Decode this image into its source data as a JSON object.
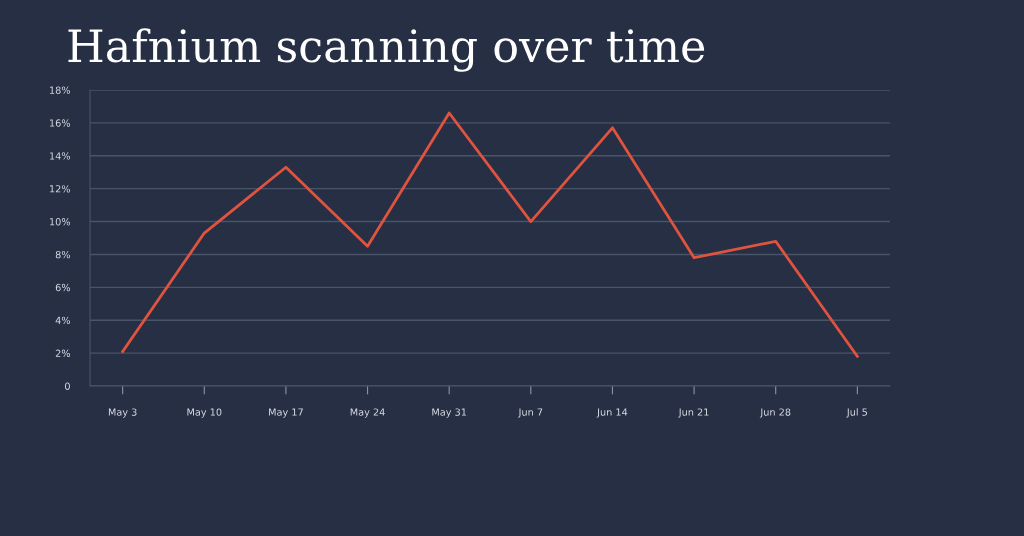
{
  "chart_data": {
    "type": "line",
    "title": "Hafnium scanning over time",
    "categories": [
      "May 3",
      "May 10",
      "May 17",
      "May 24",
      "May 31",
      "Jun 7",
      "Jun 14",
      "Jun 21",
      "Jun 28",
      "Jul 5"
    ],
    "series": [
      {
        "color": "#e0533f",
        "values": [
          2.1,
          9.3,
          13.3,
          8.5,
          16.6,
          10.0,
          15.7,
          7.8,
          8.8,
          1.8
        ]
      }
    ],
    "ylim": [
      0,
      18
    ],
    "yticks": [
      0,
      {
        "value": 2,
        "label": "2%"
      },
      {
        "value": 4,
        "label": "4%"
      },
      {
        "value": 6,
        "label": "6%"
      },
      {
        "value": 8,
        "label": "8%"
      },
      {
        "value": 10,
        "label": "10%"
      },
      {
        "value": 12,
        "label": "12%"
      },
      {
        "value": 14,
        "label": "14%"
      },
      {
        "value": 16,
        "label": "16%"
      },
      {
        "value": 18,
        "label": "18%"
      }
    ],
    "grid": "y",
    "marker": "none",
    "line_style": "solid"
  }
}
